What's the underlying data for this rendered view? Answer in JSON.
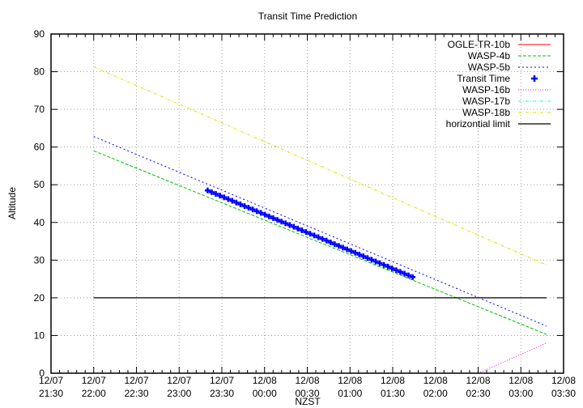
{
  "chart_data": {
    "type": "line",
    "title": "Transit Time Prediction",
    "xlabel": "NZST",
    "ylabel": "Altitude",
    "ylim": [
      0,
      90
    ],
    "yticks": [
      0,
      10,
      20,
      30,
      40,
      50,
      60,
      70,
      80,
      90
    ],
    "xlim_minutes_from_start": [
      0,
      360
    ],
    "xticks": [
      {
        "date": "12/07",
        "time": "21:30",
        "min": 0
      },
      {
        "date": "12/07",
        "time": "22:00",
        "min": 30
      },
      {
        "date": "12/07",
        "time": "22:30",
        "min": 60
      },
      {
        "date": "12/07",
        "time": "23:00",
        "min": 90
      },
      {
        "date": "12/07",
        "time": "23:30",
        "min": 120
      },
      {
        "date": "12/08",
        "time": "00:00",
        "min": 150
      },
      {
        "date": "12/08",
        "time": "00:30",
        "min": 180
      },
      {
        "date": "12/08",
        "time": "01:00",
        "min": 210
      },
      {
        "date": "12/08",
        "time": "01:30",
        "min": 240
      },
      {
        "date": "12/08",
        "time": "02:00",
        "min": 270
      },
      {
        "date": "12/08",
        "time": "02:30",
        "min": 300
      },
      {
        "date": "12/08",
        "time": "03:00",
        "min": 330
      },
      {
        "date": "12/08",
        "time": "03:30",
        "min": 360
      }
    ],
    "grid": true,
    "legend_position": "top-right",
    "series": [
      {
        "name": "OGLE-TR-10b",
        "color": "#ff0000",
        "dash": "",
        "points": []
      },
      {
        "name": "WASP-4b",
        "color": "#00c000",
        "dash": "4,2",
        "points": [
          [
            30,
            59.0
          ],
          [
            348,
            10.3
          ]
        ]
      },
      {
        "name": "WASP-5b",
        "color": "#0000ff",
        "dash": "2,3",
        "points": [
          [
            30,
            62.8
          ],
          [
            348,
            12.5
          ]
        ]
      },
      {
        "name": "Transit Time",
        "color": "#0000ff",
        "marker": "plus",
        "points": [
          [
            110,
            48.5
          ],
          [
            254,
            25.5
          ]
        ]
      },
      {
        "name": "WASP-16b",
        "color": "#ff00ff",
        "dash": "1,2",
        "points": [
          [
            300,
            0.0
          ],
          [
            348,
            8.0
          ]
        ]
      },
      {
        "name": "WASP-17b",
        "color": "#00ffff",
        "dash": "4,2,1,2",
        "points": []
      },
      {
        "name": "WASP-18b",
        "color": "#e0e000",
        "dash": "4,2,1,2",
        "points": [
          [
            30,
            81.3
          ],
          [
            348,
            28.7
          ]
        ]
      },
      {
        "name": "horizontial limit",
        "color": "#000000",
        "dash": "",
        "points": [
          [
            30,
            20
          ],
          [
            348,
            20
          ]
        ]
      }
    ]
  }
}
